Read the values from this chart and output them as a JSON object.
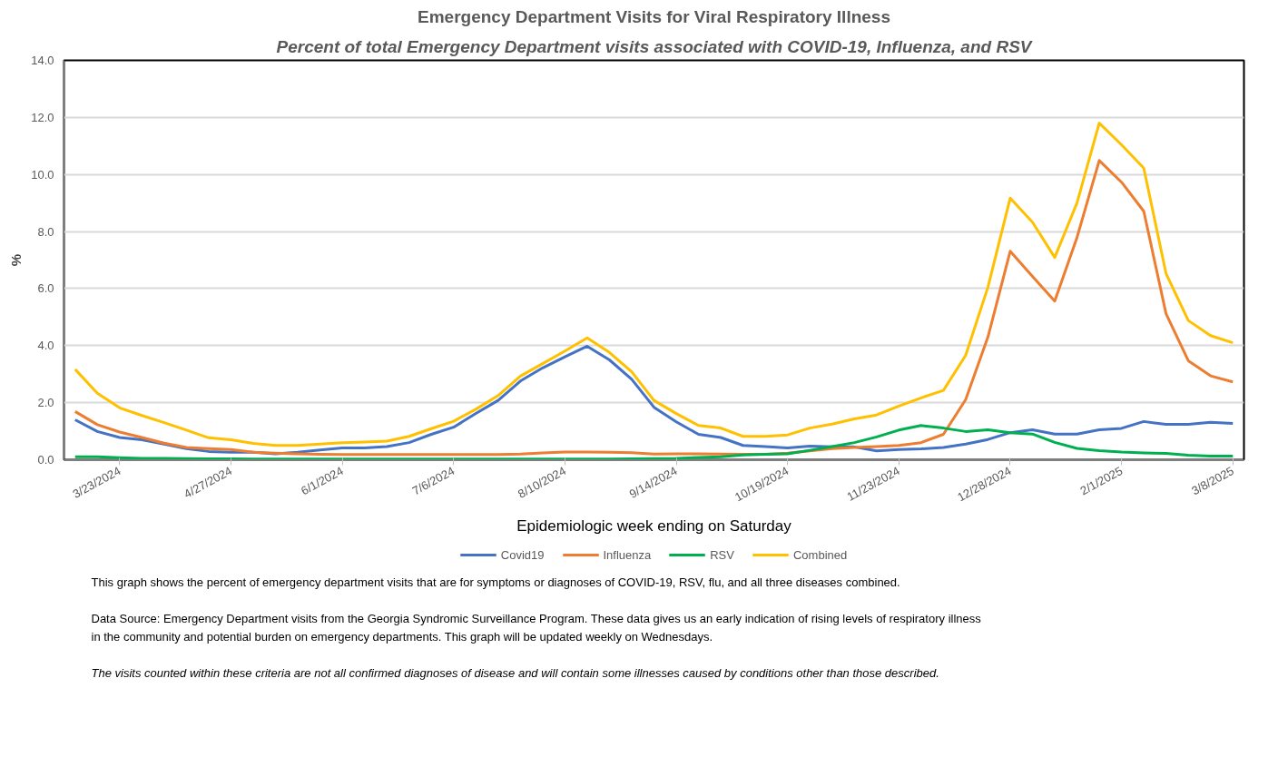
{
  "chart_data": {
    "type": "line",
    "title": "Emergency Department Visits for Viral Respiratory Illness",
    "subtitle": "Percent of total Emergency Department visits associated with COVID-19, Influenza, and RSV",
    "xlabel": "Epidemiologic week ending on Saturday",
    "ylabel": "%",
    "x": [
      "2024-03-09",
      "2024-03-16",
      "2024-03-23",
      "2024-03-30",
      "2024-04-06",
      "2024-04-13",
      "2024-04-20",
      "2024-04-27",
      "2024-05-04",
      "2024-05-11",
      "2024-05-18",
      "2024-05-25",
      "2024-06-01",
      "2024-06-08",
      "2024-06-15",
      "2024-06-22",
      "2024-06-29",
      "2024-07-06",
      "2024-07-13",
      "2024-07-20",
      "2024-07-27",
      "2024-08-03",
      "2024-08-10",
      "2024-08-17",
      "2024-08-24",
      "2024-08-31",
      "2024-09-07",
      "2024-09-14",
      "2024-09-21",
      "2024-09-28",
      "2024-10-05",
      "2024-10-12",
      "2024-10-19",
      "2024-10-26",
      "2024-11-02",
      "2024-11-09",
      "2024-11-16",
      "2024-11-23",
      "2024-11-30",
      "2024-12-07",
      "2024-12-14",
      "2024-12-21",
      "2024-12-28",
      "2025-01-04",
      "2025-01-11",
      "2025-01-18",
      "2025-01-25",
      "2025-02-01",
      "2025-02-08",
      "2025-02-15",
      "2025-02-22",
      "2025-03-01",
      "2025-03-08"
    ],
    "xlim": [
      "2024-03-05T12:00",
      "2025-03-11T12:00"
    ],
    "xticks": [
      {
        "value": "2024-03-23",
        "label": "3/23/2024"
      },
      {
        "value": "2024-04-27",
        "label": "4/27/2024"
      },
      {
        "value": "2024-06-01",
        "label": "6/1/2024"
      },
      {
        "value": "2024-07-06",
        "label": "7/6/2024"
      },
      {
        "value": "2024-08-10",
        "label": "8/10/2024"
      },
      {
        "value": "2024-09-14",
        "label": "9/14/2024"
      },
      {
        "value": "2024-10-19",
        "label": "10/19/2024"
      },
      {
        "value": "2024-11-23",
        "label": "11/23/2024"
      },
      {
        "value": "2024-12-28",
        "label": "12/28/2024"
      },
      {
        "value": "2025-02-01",
        "label": "2/1/2025"
      },
      {
        "value": "2025-03-08",
        "label": "3/8/2025"
      }
    ],
    "ylim": [
      0,
      14
    ],
    "yticks": [
      {
        "value": 0,
        "label": "0.0"
      },
      {
        "value": 2,
        "label": "2.0"
      },
      {
        "value": 4,
        "label": "4.0"
      },
      {
        "value": 6,
        "label": "6.0"
      },
      {
        "value": 8,
        "label": "8.0"
      },
      {
        "value": 10,
        "label": "10.0"
      },
      {
        "value": 12,
        "label": "12.0"
      },
      {
        "value": 14,
        "label": "14.0"
      }
    ],
    "grid": "y",
    "legend": "bottom",
    "series": [
      {
        "name": "Covid19",
        "color": "#4472c4",
        "values": [
          1.4,
          0.99,
          0.78,
          0.7,
          0.55,
          0.39,
          0.29,
          0.26,
          0.26,
          0.21,
          0.26,
          0.34,
          0.41,
          0.41,
          0.46,
          0.6,
          0.89,
          1.14,
          1.62,
          2.08,
          2.76,
          3.22,
          3.61,
          3.98,
          3.5,
          2.82,
          1.84,
          1.33,
          0.89,
          0.78,
          0.5,
          0.46,
          0.41,
          0.48,
          0.45,
          0.45,
          0.31,
          0.36,
          0.38,
          0.43,
          0.55,
          0.71,
          0.95,
          1.05,
          0.9,
          0.9,
          1.05,
          1.1,
          1.34,
          1.24,
          1.24,
          1.31,
          1.27
        ]
      },
      {
        "name": "Influenza",
        "color": "#ed7d31",
        "values": [
          1.69,
          1.23,
          0.97,
          0.78,
          0.58,
          0.43,
          0.39,
          0.36,
          0.26,
          0.23,
          0.21,
          0.19,
          0.18,
          0.18,
          0.18,
          0.18,
          0.18,
          0.18,
          0.18,
          0.18,
          0.2,
          0.24,
          0.27,
          0.27,
          0.26,
          0.25,
          0.2,
          0.21,
          0.21,
          0.2,
          0.19,
          0.19,
          0.23,
          0.31,
          0.39,
          0.43,
          0.46,
          0.5,
          0.6,
          0.89,
          2.11,
          4.3,
          7.31,
          6.43,
          5.56,
          7.79,
          10.49,
          9.73,
          8.71,
          5.12,
          3.47,
          2.94,
          2.73
        ]
      },
      {
        "name": "RSV",
        "color": "#00b050",
        "values": [
          0.1,
          0.1,
          0.07,
          0.05,
          0.05,
          0.04,
          0.03,
          0.03,
          0.02,
          0.02,
          0.02,
          0.02,
          0.02,
          0.02,
          0.02,
          0.02,
          0.02,
          0.02,
          0.02,
          0.02,
          0.02,
          0.02,
          0.02,
          0.02,
          0.02,
          0.03,
          0.04,
          0.05,
          0.08,
          0.1,
          0.17,
          0.19,
          0.21,
          0.33,
          0.46,
          0.6,
          0.8,
          1.04,
          1.2,
          1.11,
          0.99,
          1.05,
          0.95,
          0.9,
          0.61,
          0.4,
          0.32,
          0.27,
          0.24,
          0.22,
          0.16,
          0.13,
          0.13
        ]
      },
      {
        "name": "Combined",
        "color": "#ffc000",
        "values": [
          3.17,
          2.33,
          1.82,
          1.55,
          1.3,
          1.04,
          0.77,
          0.7,
          0.57,
          0.5,
          0.5,
          0.55,
          0.6,
          0.62,
          0.65,
          0.82,
          1.09,
          1.35,
          1.77,
          2.25,
          2.93,
          3.37,
          3.81,
          4.27,
          3.76,
          3.08,
          2.08,
          1.62,
          1.2,
          1.11,
          0.82,
          0.82,
          0.87,
          1.11,
          1.25,
          1.43,
          1.57,
          1.88,
          2.17,
          2.43,
          3.66,
          6.05,
          9.17,
          8.33,
          7.09,
          9.0,
          11.8,
          11.04,
          10.22,
          6.53,
          4.88,
          4.35,
          4.1
        ]
      }
    ],
    "annotations": [
      "This graph shows the percent of emergency department visits that are for symptoms or diagnoses of COVID-19, RSV, flu, and all three diseases combined.",
      "Data Source: Emergency Department visits from the Georgia Syndromic Surveillance Program. These data gives us an early indication of rising levels of respiratory illness\nin the community and potential burden on emergency departments. This graph will be updated weekly on Wednesdays.",
      "The visits counted within these criteria are not all confirmed diagnoses of disease and will contain some illnesses caused by conditions other than those described."
    ]
  }
}
